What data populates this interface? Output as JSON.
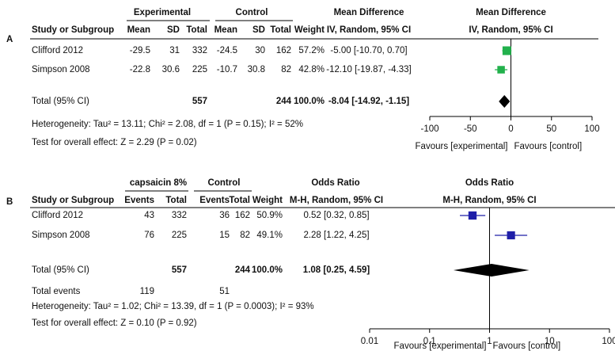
{
  "panels": [
    {
      "label": "A",
      "group_headers": [
        "Experimental",
        "Control",
        "Mean Difference"
      ],
      "columns": [
        "Study or Subgroup",
        "Mean",
        "SD",
        "Total",
        "Mean",
        "SD",
        "Total",
        "Weight",
        "IV, Random, 95% CI"
      ],
      "rows": [
        [
          "Clifford 2012",
          "-29.5",
          "31",
          "332",
          "-24.5",
          "30",
          "162",
          "57.2%",
          "-5.00 [-10.70, 0.70]"
        ],
        [
          "Simpson 2008",
          "-22.8",
          "30.6",
          "225",
          "-10.7",
          "30.8",
          "82",
          "42.8%",
          "-12.10 [-19.87, -4.33]"
        ]
      ],
      "total": [
        "Total (95% CI)",
        null,
        null,
        "557",
        null,
        null,
        "244",
        "100.0%",
        "-8.04 [-14.92, -1.15]"
      ],
      "extra_rows": [],
      "notes": [
        "Heterogeneity: Tau² = 13.11; Chi² = 2.08, df = 1 (P = 0.15); I² = 52%",
        "Test for overall effect: Z = 2.29 (P = 0.02)"
      ],
      "plot": {
        "type": "forest",
        "title": "Mean Difference",
        "subtitle": "IV, Random, 95% CI",
        "xlim": [
          -100,
          100
        ],
        "xticks": [
          -100,
          -50,
          0,
          50,
          100
        ],
        "log": false,
        "color": "#22b14c",
        "studies": [
          {
            "estimate": -5.0,
            "lower": -10.7,
            "upper": 0.7,
            "weight": 57.2
          },
          {
            "estimate": -12.1,
            "lower": -19.87,
            "upper": -4.33,
            "weight": 42.8
          }
        ],
        "total": {
          "estimate": -8.04,
          "lower": -14.92,
          "upper": -1.15
        },
        "favours": [
          "Favours [experimental]",
          "Favours [control]"
        ]
      }
    },
    {
      "label": "B",
      "group_headers": [
        "capsaicin 8%",
        "Control",
        "Odds Ratio"
      ],
      "columns": [
        "Study or Subgroup",
        "Events",
        "Total",
        "Events",
        "Total",
        "Weight",
        "M-H, Random, 95% CI"
      ],
      "rows": [
        [
          "Clifford 2012",
          "43",
          "332",
          "36",
          "162",
          "50.9%",
          "0.52 [0.32, 0.85]"
        ],
        [
          "Simpson 2008",
          "76",
          "225",
          "15",
          "82",
          "49.1%",
          "2.28 [1.22, 4.25]"
        ]
      ],
      "total": [
        "Total (95% CI)",
        null,
        "557",
        null,
        "244",
        "100.0%",
        "1.08 [0.25, 4.59]"
      ],
      "extra_rows": [
        [
          "Total events",
          "119",
          null,
          "51"
        ]
      ],
      "notes": [
        "Heterogeneity: Tau² = 1.02; Chi² = 13.39, df = 1 (P = 0.0003); I² = 93%",
        "Test for overall effect: Z = 0.10 (P = 0.92)"
      ],
      "plot": {
        "type": "forest",
        "title": "Odds Ratio",
        "subtitle": "M-H, Random, 95% CI",
        "xlim": [
          0.01,
          100
        ],
        "xticks": [
          0.01,
          0.1,
          1,
          10,
          100
        ],
        "log": true,
        "color": "#1f1fa8",
        "studies": [
          {
            "estimate": 0.52,
            "lower": 0.32,
            "upper": 0.85,
            "weight": 50.9
          },
          {
            "estimate": 2.28,
            "lower": 1.22,
            "upper": 4.25,
            "weight": 49.1
          }
        ],
        "total": {
          "estimate": 1.08,
          "lower": 0.25,
          "upper": 4.59
        },
        "favours": [
          "Favours [experimental]",
          "Favours [control]"
        ]
      }
    }
  ]
}
